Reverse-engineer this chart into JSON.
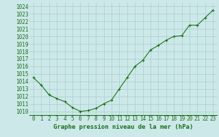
{
  "x": [
    0,
    1,
    2,
    3,
    4,
    5,
    6,
    7,
    8,
    9,
    10,
    11,
    12,
    13,
    14,
    15,
    16,
    17,
    18,
    19,
    20,
    21,
    22,
    23
  ],
  "y": [
    1014.5,
    1013.5,
    1012.2,
    1011.7,
    1011.3,
    1010.5,
    1010.0,
    1010.1,
    1010.4,
    1011.0,
    1011.5,
    1013.0,
    1014.5,
    1016.0,
    1016.8,
    1018.2,
    1018.8,
    1019.5,
    1020.0,
    1020.1,
    1021.5,
    1021.5,
    1022.5,
    1023.5
  ],
  "line_color": "#1a6e1a",
  "marker": "+",
  "bg_color": "#cce8e8",
  "grid_color": "#aacccc",
  "xlabel": "Graphe pression niveau de la mer (hPa)",
  "xlabel_color": "#1a6e1a",
  "tick_color": "#1a6e1a",
  "ylim": [
    1009.5,
    1024.5
  ],
  "yticks": [
    1010,
    1011,
    1012,
    1013,
    1014,
    1015,
    1016,
    1017,
    1018,
    1019,
    1020,
    1021,
    1022,
    1023,
    1024
  ],
  "xlim": [
    -0.5,
    23.5
  ],
  "xticks": [
    0,
    1,
    2,
    3,
    4,
    5,
    6,
    7,
    8,
    9,
    10,
    11,
    12,
    13,
    14,
    15,
    16,
    17,
    18,
    19,
    20,
    21,
    22,
    23
  ],
  "tick_fontsize": 5.5,
  "xlabel_fontsize": 6.5,
  "linewidth": 0.8,
  "markersize": 3.5,
  "markeredgewidth": 0.8
}
